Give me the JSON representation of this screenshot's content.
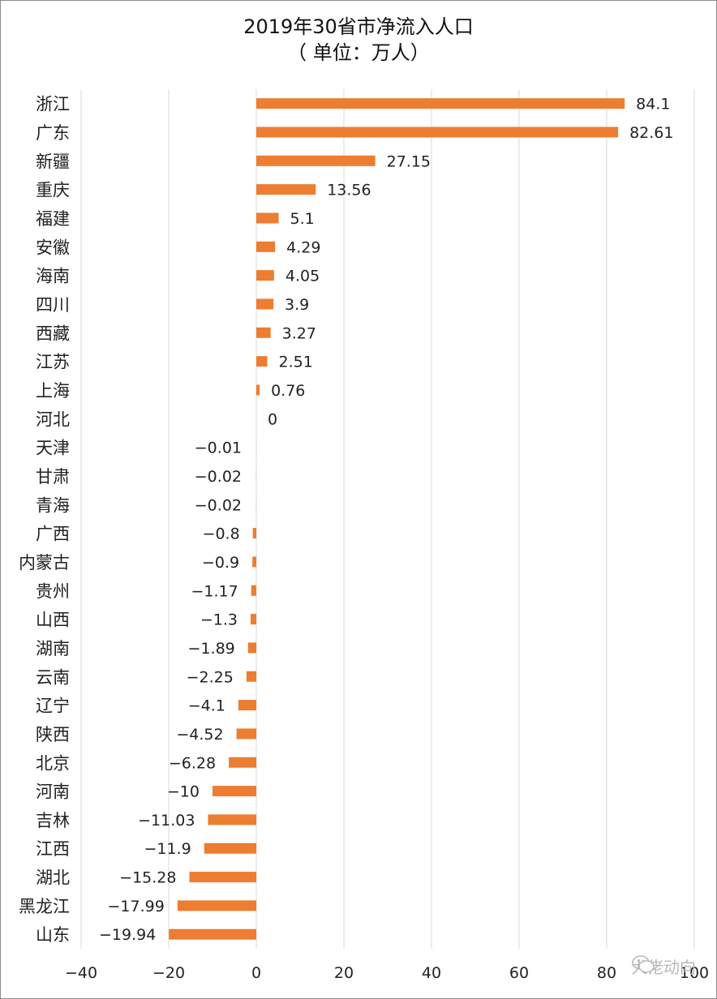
{
  "title_line1": "2019年30省市净流入人口",
  "title_line2": "（ 单位：万人）",
  "watermark": "大佬动向",
  "colors": {
    "bar": "#ed7d31",
    "grid": "#d9d9d9",
    "text": "#222222"
  },
  "chart_data": {
    "type": "bar",
    "orientation": "horizontal",
    "title": "2019年30省市净流入人口（ 单位：万人）",
    "xlim": [
      -40,
      100
    ],
    "xticks": [
      "−40",
      "−20",
      "0",
      "20",
      "40",
      "60",
      "80",
      "100"
    ],
    "grid": true,
    "categories": [
      "浙江",
      "广东",
      "新疆",
      "重庆",
      "福建",
      "安徽",
      "海南",
      "四川",
      "西藏",
      "江苏",
      "上海",
      "河北",
      "天津",
      "甘肃",
      "青海",
      "广西",
      "内蒙古",
      "贵州",
      "山西",
      "湖南",
      "云南",
      "辽宁",
      "陕西",
      "北京",
      "河南",
      "吉林",
      "江西",
      "湖北",
      "黑龙江",
      "山东"
    ],
    "values": [
      84.1,
      82.61,
      27.15,
      13.56,
      5.1,
      4.29,
      4.05,
      3.9,
      3.27,
      2.51,
      0.76,
      0,
      -0.01,
      -0.02,
      -0.02,
      -0.8,
      -0.9,
      -1.17,
      -1.3,
      -1.89,
      -2.25,
      -4.1,
      -4.52,
      -6.28,
      -10,
      -11.03,
      -11.9,
      -15.28,
      -17.99,
      -19.94
    ],
    "labels": [
      "84.1",
      "82.61",
      "27.15",
      "13.56",
      "5.1",
      "4.29",
      "4.05",
      "3.9",
      "3.27",
      "2.51",
      "0.76",
      "0",
      "−0.01",
      "−0.02",
      "−0.02",
      "−0.8",
      "−0.9",
      "−1.17",
      "−1.3",
      "−1.89",
      "−2.25",
      "−4.1",
      "−4.52",
      "−6.28",
      "−10",
      "−11.03",
      "−11.9",
      "−15.28",
      "−17.99",
      "−19.94"
    ]
  }
}
